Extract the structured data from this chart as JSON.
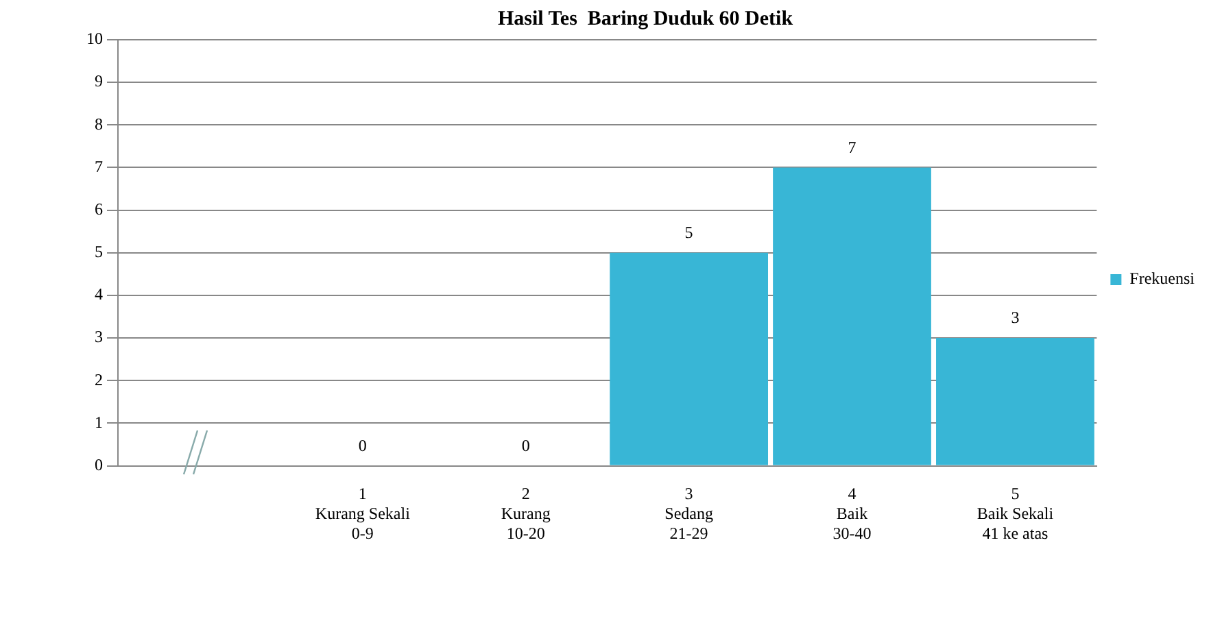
{
  "chart_data": {
    "type": "bar",
    "title": "Hasil Tes  Baring Duduk 60 Detik",
    "categories": [
      null,
      "1\nKurang Sekali\n0-9",
      "2\nKurang\n10-20",
      "3\nSedang\n21-29",
      "4\nBaik\n30-40",
      "5\nBaik Sekali\n41 ke atas"
    ],
    "series": [
      {
        "name": "Frekuensi",
        "color": "#38b6d6",
        "values": [
          null,
          0,
          0,
          5,
          7,
          3
        ]
      }
    ],
    "ylim": [
      0,
      10
    ],
    "yticks": [
      0,
      1,
      2,
      3,
      4,
      5,
      6,
      7,
      8,
      9,
      10
    ],
    "grid": "y",
    "legend": "right",
    "data_labels": true
  }
}
